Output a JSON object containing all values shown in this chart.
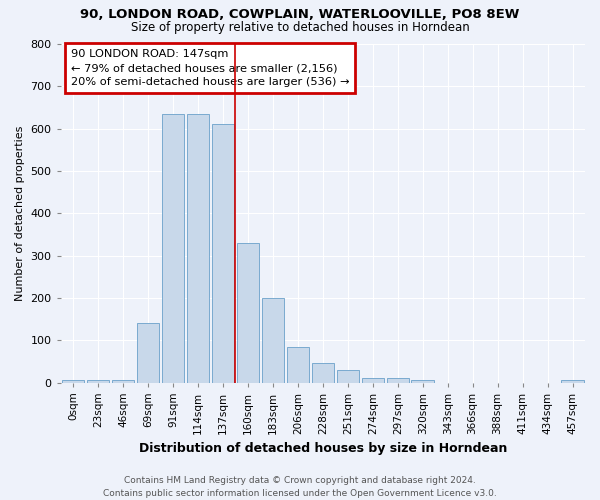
{
  "title1": "90, LONDON ROAD, COWPLAIN, WATERLOOVILLE, PO8 8EW",
  "title2": "Size of property relative to detached houses in Horndean",
  "xlabel": "Distribution of detached houses by size in Horndean",
  "ylabel": "Number of detached properties",
  "bar_labels": [
    "0sqm",
    "23sqm",
    "46sqm",
    "69sqm",
    "91sqm",
    "114sqm",
    "137sqm",
    "160sqm",
    "183sqm",
    "206sqm",
    "228sqm",
    "251sqm",
    "274sqm",
    "297sqm",
    "320sqm",
    "343sqm",
    "366sqm",
    "388sqm",
    "411sqm",
    "434sqm",
    "457sqm"
  ],
  "bar_values": [
    5,
    5,
    5,
    140,
    635,
    635,
    610,
    330,
    200,
    85,
    45,
    30,
    10,
    10,
    5,
    0,
    0,
    0,
    0,
    0,
    5
  ],
  "bar_color": "#c8d8ea",
  "bar_edge_color": "#7aaacf",
  "vline_index": 7,
  "annotation_text_line1": "90 LONDON ROAD: 147sqm",
  "annotation_text_line2": "← 79% of detached houses are smaller (2,156)",
  "annotation_text_line3": "20% of semi-detached houses are larger (536) →",
  "ylim": [
    0,
    800
  ],
  "yticks": [
    0,
    100,
    200,
    300,
    400,
    500,
    600,
    700,
    800
  ],
  "footer_text": "Contains HM Land Registry data © Crown copyright and database right 2024.\nContains public sector information licensed under the Open Government Licence v3.0.",
  "box_edge_color": "#cc0000",
  "vline_color": "#cc0000",
  "background_color": "#eef2fa",
  "grid_color": "#ffffff"
}
